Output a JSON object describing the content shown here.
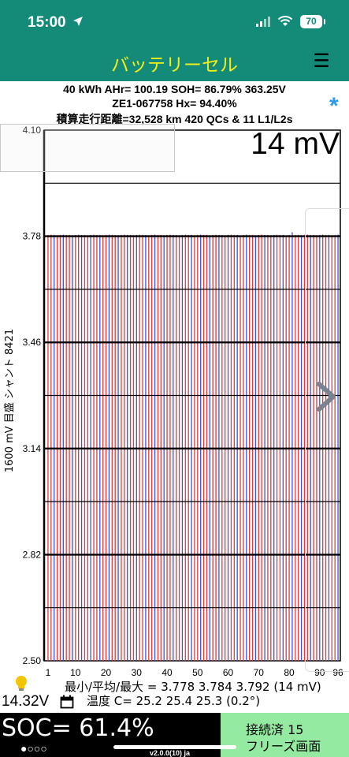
{
  "status_bar": {
    "time": "15:00",
    "battery_level": "70",
    "icons": [
      "location-arrow-icon",
      "signal-icon",
      "wifi-icon",
      "battery-icon"
    ]
  },
  "header": {
    "title": "バッテリーセル",
    "menu_icon": "☰"
  },
  "info": {
    "line1": "40 kWh  AHr= 100.19  SOH= 86.79%   363.25V",
    "line2": "ZE1-067758    Hx= 94.40%",
    "line3": "積算走行距離=32,528 km 420 QCs & 11 L1/L2s",
    "asterisk": "*"
  },
  "chart": {
    "spread_label": "14 mV",
    "y_axis_title": "1600 mV 目盛  シャント 8421",
    "y_ticks": [
      "4.10",
      "3.78",
      "3.46",
      "3.14",
      "2.82",
      "2.50"
    ],
    "x_ticks": [
      "1",
      "10",
      "20",
      "30",
      "40",
      "50",
      "60",
      "70",
      "80",
      "90",
      "96"
    ],
    "colors": {
      "cell_a": "#e03a3a",
      "cell_b": "#3f4fe3",
      "grid": "#000000"
    }
  },
  "chart_data": {
    "type": "bar",
    "ylabel": "1600 mV 目盛  シャント 8421",
    "xlabel": "",
    "ylim": [
      2.5,
      4.1
    ],
    "cell_count": 96,
    "values": [
      3.784,
      3.785,
      3.784,
      3.783,
      3.784,
      3.785,
      3.784,
      3.784,
      3.783,
      3.784,
      3.785,
      3.784,
      3.784,
      3.783,
      3.784,
      3.785,
      3.784,
      3.784,
      3.783,
      3.784,
      3.785,
      3.784,
      3.784,
      3.783,
      3.784,
      3.785,
      3.784,
      3.784,
      3.783,
      3.784,
      3.785,
      3.784,
      3.784,
      3.783,
      3.784,
      3.785,
      3.784,
      3.784,
      3.783,
      3.784,
      3.785,
      3.784,
      3.784,
      3.783,
      3.784,
      3.785,
      3.784,
      3.784,
      3.783,
      3.784,
      3.785,
      3.784,
      3.784,
      3.783,
      3.784,
      3.785,
      3.784,
      3.784,
      3.783,
      3.784,
      3.785,
      3.784,
      3.784,
      3.778,
      3.784,
      3.785,
      3.784,
      3.784,
      3.783,
      3.784,
      3.785,
      3.784,
      3.784,
      3.783,
      3.784,
      3.785,
      3.784,
      3.784,
      3.783,
      3.784,
      3.792,
      3.784,
      3.784,
      3.783,
      3.784,
      3.785,
      3.784,
      3.784,
      3.783,
      3.784,
      3.785,
      3.784,
      3.784,
      3.783,
      3.784,
      3.785
    ]
  },
  "stats": {
    "line1": "最小/平均/最大 = 3.778 3.784 3.792  (14 mV)",
    "line2": "温度 C= 25.2  25.4  25.3  (0.2°)",
    "voltage": "14.32V"
  },
  "footer": {
    "soc": "SOC= 61.4%",
    "page_dots": "●○○○",
    "version": "v2.0.0(10) ja",
    "connect_status": "接続済 15",
    "freeze_label": "フリーズ画面"
  }
}
